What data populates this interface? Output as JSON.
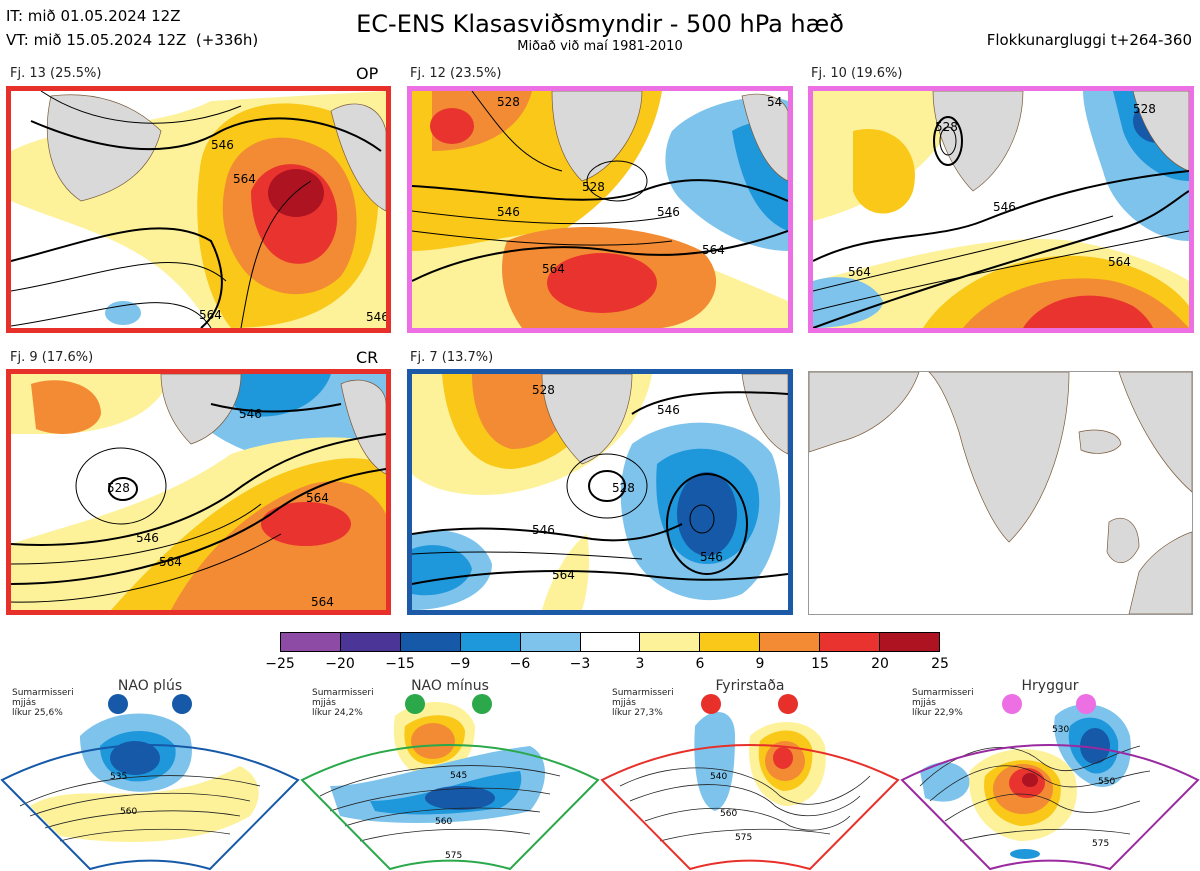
{
  "header": {
    "it_line": "IT: mið 01.05.2024 12Z",
    "vt_line": "VT: mið 15.05.2024 12Z  (+336h)",
    "title": "EC-ENS Klasasviðsmyndir - 500 hPa hæð",
    "subtitle": "Miðað við maí 1981-2010",
    "window": "Flokkunargluggi t+264-360"
  },
  "panels": [
    {
      "label": "Fj. 13 (25.5%)",
      "tag": "OP",
      "frame_color": "#e8302b",
      "contours": [
        "546",
        "564",
        "564",
        "546"
      ]
    },
    {
      "label": "Fj. 12 (23.5%)",
      "tag": "",
      "frame_color": "#ec6fe4",
      "contours": [
        "528",
        "546",
        "564",
        "546",
        "564",
        "54",
        "528"
      ]
    },
    {
      "label": "Fj. 10 (19.6%)",
      "tag": "",
      "frame_color": "#ec6fe4",
      "contours": [
        "528",
        "546",
        "564",
        "564",
        "528"
      ]
    },
    {
      "label": "Fj. 9 (17.6%)",
      "tag": "CR",
      "frame_color": "#e8302b",
      "contours": [
        "528",
        "546",
        "564",
        "564",
        "546",
        "564"
      ]
    },
    {
      "label": "Fj. 7 (13.7%)",
      "tag": "",
      "frame_color": "#1c5aa8",
      "contours": [
        "528",
        "528",
        "546",
        "546",
        "564",
        "546"
      ]
    }
  ],
  "colorbar": {
    "colors": [
      "#8e4ba6",
      "#4b3596",
      "#1559a8",
      "#1f97db",
      "#7dc3ec",
      "#ffffff",
      "#fdf29a",
      "#f9c818",
      "#f28b34",
      "#e9332f",
      "#ad1321"
    ],
    "ticks": [
      "−25",
      "−20",
      "−15",
      "−9",
      "−6",
      "−3",
      "3",
      "6",
      "9",
      "15",
      "20",
      "25"
    ]
  },
  "regimes": [
    {
      "name": "NAO plús",
      "line1": "Sumarmisseri",
      "line2": "mjjás",
      "line3": "líkur 25,6%",
      "color": "#1559a8",
      "contours": [
        "535",
        "560"
      ]
    },
    {
      "name": "NAO mínus",
      "line1": "Sumarmisseri",
      "line2": "mjjás",
      "line3": "líkur 24,2%",
      "color": "#2aa84a",
      "contours": [
        "545",
        "560",
        "575"
      ]
    },
    {
      "name": "Fyrirstaða",
      "line1": "Sumarmisseri",
      "line2": "mjjás",
      "line3": "líkur 27,3%",
      "color": "#e8302b",
      "contours": [
        "540",
        "560",
        "575"
      ]
    },
    {
      "name": "Hryggur",
      "line1": "Sumarmisseri",
      "line2": "mjjás",
      "line3": "líkur 22,9%",
      "color": "#9a2aa0",
      "dot_color": "#ec6fe4",
      "contours": [
        "530",
        "550",
        "575"
      ]
    }
  ]
}
